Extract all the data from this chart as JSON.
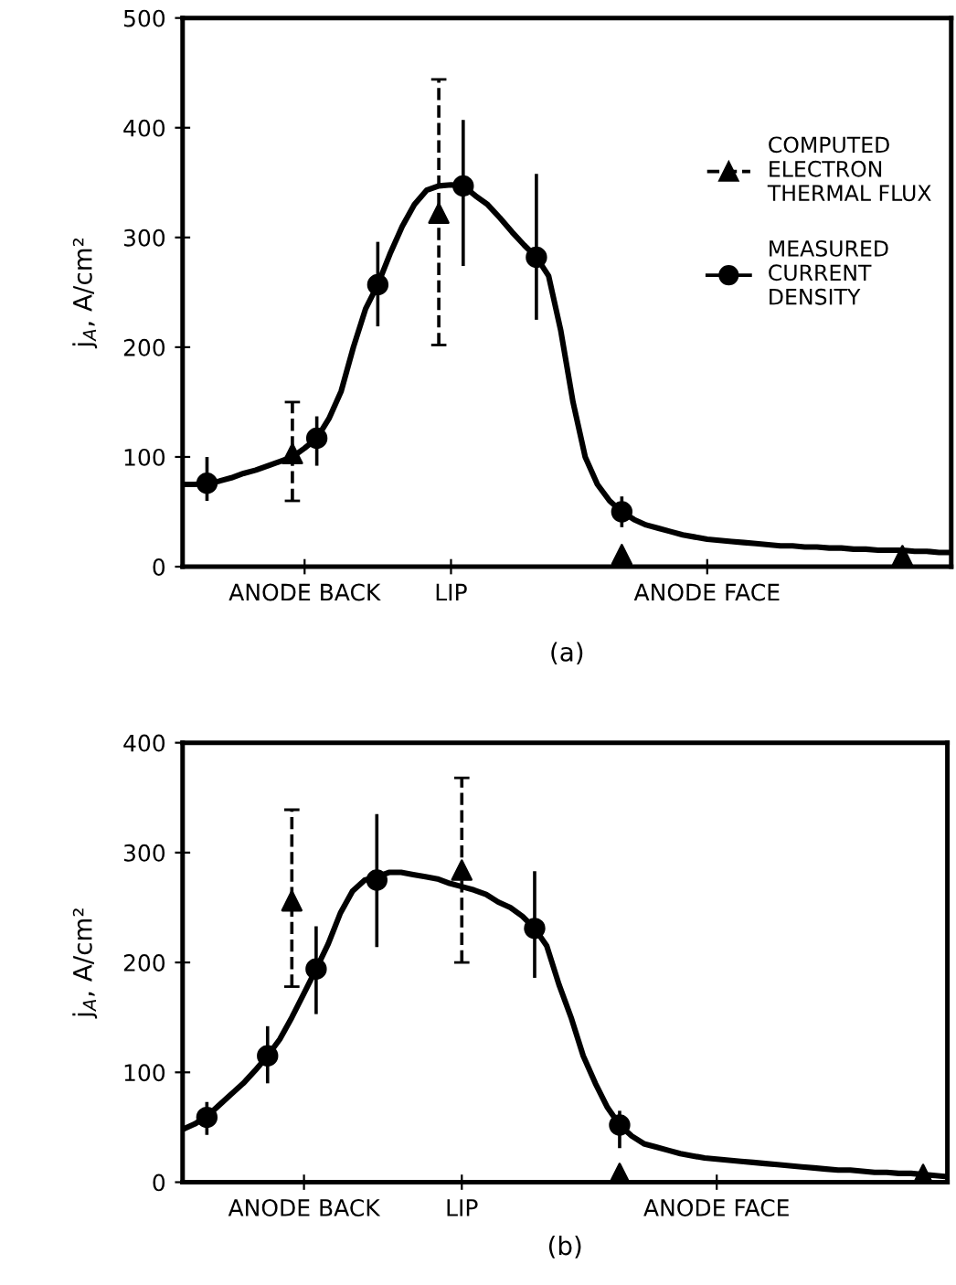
{
  "chart_data": [
    {
      "type": "scatter",
      "title": "(a)",
      "ylabel": "j$_{A}$, A/cm²",
      "categories": [
        null,
        null,
        null,
        null,
        null,
        null,
        null,
        null,
        null,
        null,
        "ANODE BACK",
        null,
        null,
        null,
        null,
        null,
        null,
        null,
        null,
        null,
        null,
        null,
        "LIP",
        null,
        null,
        null,
        null,
        null,
        null,
        null,
        null,
        null,
        null,
        null,
        null,
        null,
        null,
        null,
        null,
        null,
        null,
        null,
        null,
        "ANODE FACE",
        null,
        null,
        null,
        null,
        null,
        null,
        null,
        null,
        null,
        null,
        null,
        null,
        null,
        null,
        null,
        null,
        null,
        null,
        null,
        null
      ],
      "ylim": [
        0,
        500
      ],
      "yticks": [
        0,
        100,
        200,
        300,
        400,
        500
      ],
      "grid": false,
      "legend": "top right",
      "series": [
        {
          "name": "COMPUTED\nELECTRON\nTHERMAL FLUX",
          "marker": "triangle",
          "line_style": "dashed",
          "color": "#000000",
          "values": [
            null,
            null,
            null,
            null,
            null,
            null,
            null,
            null,
            null,
            103,
            null,
            null,
            null,
            null,
            null,
            null,
            null,
            null,
            null,
            null,
            null,
            322,
            null,
            null,
            null,
            null,
            null,
            null,
            null,
            null,
            null,
            null,
            null,
            null,
            null,
            null,
            11,
            null,
            null,
            null,
            null,
            null,
            null,
            null,
            null,
            null,
            null,
            null,
            null,
            null,
            null,
            null,
            null,
            null,
            null,
            null,
            null,
            null,
            null,
            10,
            null,
            null,
            null,
            null
          ],
          "errors": [
            null,
            null,
            null,
            null,
            null,
            null,
            null,
            null,
            null,
            [
              60,
              150
            ],
            null,
            null,
            null,
            null,
            null,
            null,
            null,
            null,
            null,
            null,
            null,
            [
              202,
              444
            ],
            null,
            null,
            null,
            null,
            null,
            null,
            null,
            null,
            null,
            null,
            null,
            null,
            null,
            null,
            null,
            null,
            null,
            null,
            null,
            null,
            null,
            null,
            null,
            null,
            null,
            null,
            null,
            null,
            null,
            null,
            null,
            null,
            null,
            null,
            null,
            null,
            null,
            null,
            null,
            null,
            null,
            null
          ]
        },
        {
          "name": "MEASURED\nCURRENT\nDENSITY",
          "marker": "circle",
          "line_style": "solid",
          "color": "#000000",
          "values": [
            null,
            null,
            76,
            null,
            null,
            null,
            null,
            null,
            null,
            null,
            null,
            117,
            null,
            null,
            null,
            null,
            257,
            null,
            null,
            null,
            null,
            null,
            null,
            347,
            null,
            null,
            null,
            null,
            null,
            282,
            null,
            null,
            null,
            null,
            null,
            null,
            50,
            null,
            null,
            null,
            null,
            null,
            null,
            null,
            null,
            null,
            null,
            null,
            null,
            null,
            null,
            null,
            null,
            null,
            null,
            null,
            null,
            null,
            null,
            null,
            null,
            null,
            null,
            null
          ],
          "errors": [
            null,
            null,
            [
              60,
              100
            ],
            null,
            null,
            null,
            null,
            null,
            null,
            null,
            null,
            [
              92,
              137
            ],
            null,
            null,
            null,
            null,
            [
              219,
              296
            ],
            null,
            null,
            null,
            null,
            null,
            null,
            [
              274,
              407
            ],
            null,
            null,
            null,
            null,
            null,
            [
              225,
              358
            ],
            null,
            null,
            null,
            null,
            null,
            null,
            [
              36,
              64
            ],
            null,
            null,
            null,
            null,
            null,
            null,
            null,
            null,
            null,
            null,
            null,
            null,
            null,
            null,
            null,
            null,
            null,
            null,
            null,
            null,
            null,
            null,
            null,
            null,
            null,
            null,
            null
          ]
        },
        {
          "type": "line",
          "marker": "none",
          "line_style": "solid",
          "color": "#000000",
          "values": [
            75,
            75,
            76,
            78,
            81,
            85,
            88,
            92,
            96,
            100,
            108,
            117,
            135,
            160,
            200,
            235,
            257,
            285,
            310,
            330,
            343,
            347,
            348,
            347,
            338,
            330,
            318,
            305,
            293,
            282,
            265,
            215,
            150,
            100,
            75,
            60,
            50,
            43,
            38,
            35,
            32,
            29,
            27,
            25,
            24,
            23,
            22,
            21,
            20,
            19,
            19,
            18,
            18,
            17,
            17,
            16,
            16,
            15,
            15,
            15,
            14,
            14,
            13,
            13
          ]
        }
      ]
    },
    {
      "type": "scatter",
      "title": "(b)",
      "ylabel": "j$_{A}$, A/cm²",
      "categories": [
        null,
        null,
        null,
        null,
        null,
        null,
        null,
        null,
        null,
        null,
        "ANODE BACK",
        null,
        null,
        null,
        null,
        null,
        null,
        null,
        null,
        null,
        null,
        null,
        null,
        "LIP",
        null,
        null,
        null,
        null,
        null,
        null,
        null,
        null,
        null,
        null,
        null,
        null,
        null,
        null,
        null,
        null,
        null,
        null,
        null,
        null,
        "ANODE FACE",
        null,
        null,
        null,
        null,
        null,
        null,
        null,
        null,
        null,
        null,
        null,
        null,
        null,
        null,
        null,
        null,
        null,
        null,
        null
      ],
      "ylim": [
        0,
        400
      ],
      "yticks": [
        0,
        100,
        200,
        300,
        400
      ],
      "grid": false,
      "legend": false,
      "series": [
        {
          "marker": "triangle",
          "line_style": "dashed",
          "color": "#000000",
          "values": [
            null,
            null,
            null,
            null,
            null,
            null,
            null,
            null,
            null,
            256,
            null,
            null,
            null,
            null,
            null,
            null,
            null,
            null,
            null,
            null,
            null,
            null,
            null,
            284,
            null,
            null,
            null,
            null,
            null,
            null,
            null,
            null,
            null,
            null,
            null,
            null,
            8,
            null,
            null,
            null,
            null,
            null,
            null,
            null,
            null,
            null,
            null,
            null,
            null,
            null,
            null,
            null,
            null,
            null,
            null,
            null,
            null,
            null,
            null,
            null,
            null,
            7,
            null,
            null
          ],
          "errors": [
            null,
            null,
            null,
            null,
            null,
            null,
            null,
            null,
            null,
            [
              178,
              339
            ],
            null,
            null,
            null,
            null,
            null,
            null,
            null,
            null,
            null,
            null,
            null,
            null,
            null,
            [
              200,
              368
            ],
            null,
            null,
            null,
            null,
            null,
            null,
            null,
            null,
            null,
            null,
            null,
            null,
            null,
            null,
            null,
            null,
            null,
            null,
            null,
            null,
            null,
            null,
            null,
            null,
            null,
            null,
            null,
            null,
            null,
            null,
            null,
            null,
            null,
            null,
            null,
            null,
            null,
            null,
            null,
            null
          ]
        },
        {
          "marker": "circle",
          "line_style": "solid",
          "color": "#000000",
          "values": [
            null,
            null,
            59,
            null,
            null,
            null,
            null,
            115,
            null,
            null,
            null,
            194,
            null,
            null,
            null,
            null,
            275,
            null,
            null,
            null,
            null,
            null,
            null,
            null,
            null,
            null,
            null,
            null,
            null,
            231,
            null,
            null,
            null,
            null,
            null,
            null,
            52,
            null,
            null,
            null,
            null,
            null,
            null,
            null,
            null,
            null,
            null,
            null,
            null,
            null,
            null,
            null,
            null,
            null,
            null,
            null,
            null,
            null,
            null,
            null,
            null,
            null,
            null,
            null
          ],
          "errors": [
            null,
            null,
            [
              43,
              73
            ],
            null,
            null,
            null,
            null,
            [
              90,
              142
            ],
            null,
            null,
            null,
            [
              153,
              233
            ],
            null,
            null,
            null,
            null,
            [
              214,
              335
            ],
            null,
            null,
            null,
            null,
            null,
            null,
            null,
            null,
            null,
            null,
            null,
            null,
            [
              186,
              283
            ],
            null,
            null,
            null,
            null,
            null,
            null,
            [
              31,
              65
            ],
            null,
            null,
            null,
            null,
            null,
            null,
            null,
            null,
            null,
            null,
            null,
            null,
            null,
            null,
            null,
            null,
            null,
            null,
            null,
            null,
            null,
            null,
            null,
            null,
            null,
            null,
            null
          ]
        },
        {
          "type": "line",
          "marker": "none",
          "line_style": "solid",
          "color": "#000000",
          "values": [
            48,
            53,
            60,
            70,
            80,
            90,
            102,
            115,
            130,
            150,
            172,
            194,
            217,
            245,
            265,
            275,
            278,
            282,
            282,
            280,
            278,
            276,
            272,
            269,
            266,
            262,
            255,
            250,
            242,
            231,
            215,
            180,
            150,
            115,
            90,
            68,
            52,
            42,
            35,
            32,
            29,
            26,
            24,
            22,
            21,
            20,
            19,
            18,
            17,
            16,
            15,
            14,
            13,
            12,
            11,
            11,
            10,
            9,
            9,
            8,
            8,
            7,
            6,
            5
          ]
        }
      ]
    }
  ]
}
